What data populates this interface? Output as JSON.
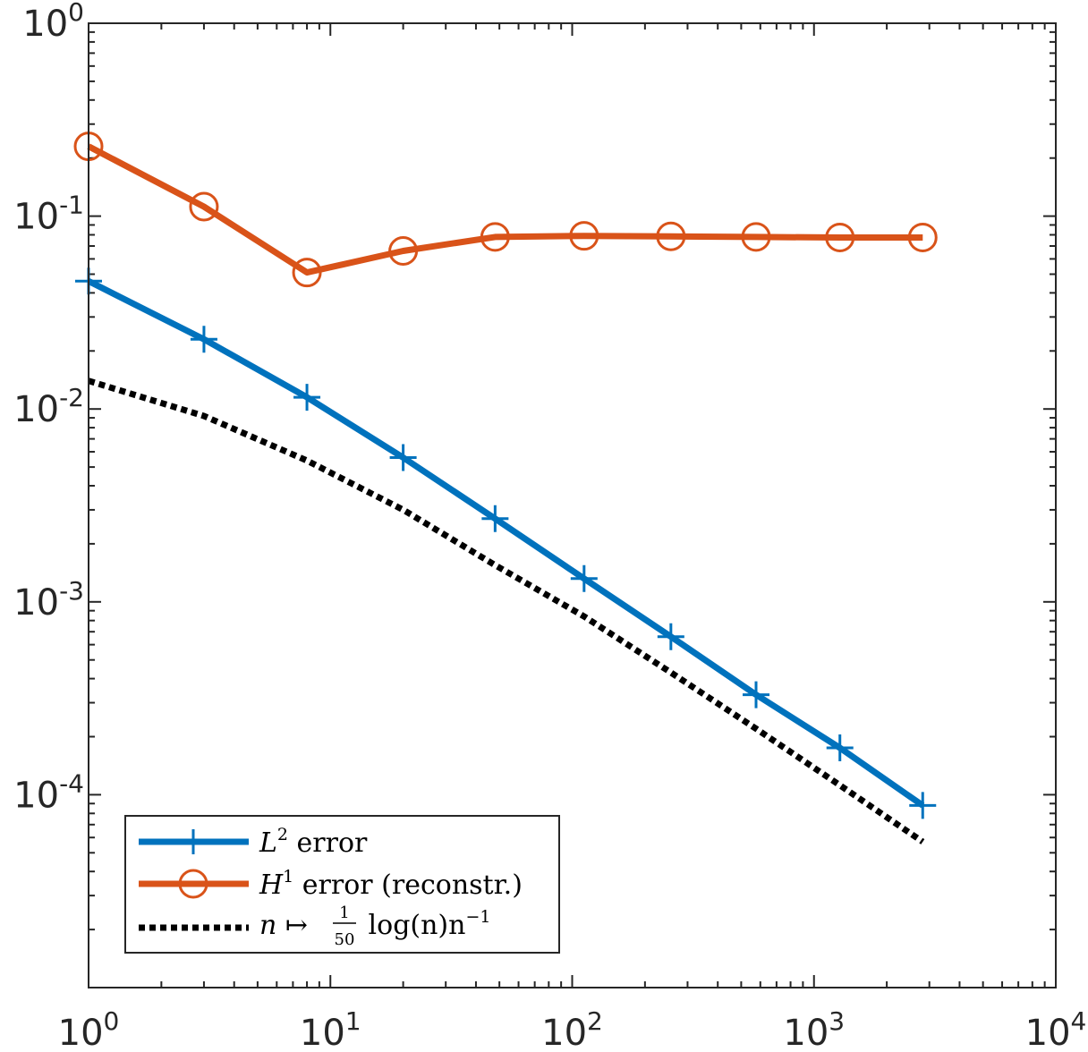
{
  "chart_data": {
    "type": "line",
    "title": "",
    "xlabel": "",
    "ylabel": "",
    "xscale": "log",
    "yscale": "log",
    "xlim": [
      1,
      10000
    ],
    "ylim": [
      1e-05,
      1
    ],
    "grid": false,
    "legend_position": "bottom-left",
    "x_tick_labels": [
      {
        "base": "10",
        "exp": "0",
        "value": 1
      },
      {
        "base": "10",
        "exp": "1",
        "value": 10
      },
      {
        "base": "10",
        "exp": "2",
        "value": 100
      },
      {
        "base": "10",
        "exp": "3",
        "value": 1000
      },
      {
        "base": "10",
        "exp": "4",
        "value": 10000
      }
    ],
    "y_tick_labels": [
      {
        "base": "10",
        "exp": "0",
        "value": 1
      },
      {
        "base": "10",
        "exp": "-1",
        "value": 0.1
      },
      {
        "base": "10",
        "exp": "-2",
        "value": 0.01
      },
      {
        "base": "10",
        "exp": "-3",
        "value": 0.001
      },
      {
        "base": "10",
        "exp": "-4",
        "value": 0.0001
      }
    ],
    "x": [
      1,
      3,
      8,
      20,
      48,
      112,
      256,
      576,
      1280,
      2816
    ],
    "series": [
      {
        "name": "L² error",
        "legend_main": "L",
        "legend_sup": "2",
        "legend_rest": " error",
        "color": "#0072BD",
        "marker": "plus",
        "style": "solid",
        "values": [
          0.046,
          0.023,
          0.0115,
          0.0056,
          0.0027,
          0.00132,
          0.00066,
          0.00033,
          0.000175,
          8.8e-05
        ]
      },
      {
        "name": "H¹ error (reconstr.)",
        "legend_main": "H",
        "legend_sup": "1",
        "legend_rest": " error (reconstr.)",
        "color": "#D95319",
        "marker": "circle",
        "style": "solid",
        "values": [
          0.23,
          0.112,
          0.051,
          0.066,
          0.078,
          0.079,
          0.0785,
          0.078,
          0.0775,
          0.0775
        ]
      },
      {
        "name": "n ↦ (1/50) log(n) n⁻¹",
        "legend_prefix": "n ↦ ",
        "legend_frac_num": "1",
        "legend_frac_den": "50",
        "legend_suffix": " log(n)n",
        "legend_sup": "−1",
        "color": "#000000",
        "marker": "none",
        "style": "dotted",
        "values": [
          0.014,
          0.0092,
          0.0054,
          0.003,
          0.00155,
          0.00084,
          0.00043,
          0.00022,
          0.000112,
          5.7e-05
        ]
      }
    ]
  }
}
